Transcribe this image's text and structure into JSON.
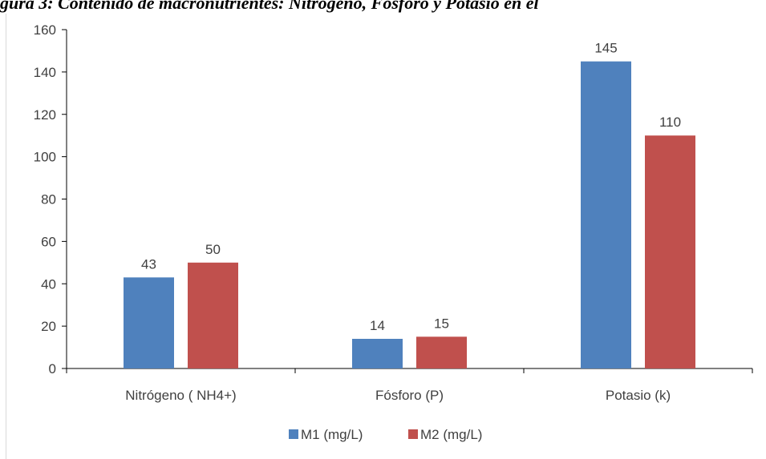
{
  "caption": "gura 3: Contenido de macronutrientes: Nitrógeno, Fósforo y Potasio en el",
  "chart_data": {
    "type": "bar",
    "categories": [
      "Nitrógeno ( NH4+)",
      "Fósforo (P)",
      "Potasio (k)"
    ],
    "series": [
      {
        "name": "M1 (mg/L)",
        "values": [
          43,
          14,
          145
        ],
        "color": "#4F81BD"
      },
      {
        "name": "M2 (mg/L)",
        "values": [
          50,
          15,
          110
        ],
        "color": "#C0504D"
      }
    ],
    "title": "",
    "xlabel": "",
    "ylabel": "",
    "ylim": [
      0,
      160
    ],
    "yticks": [
      0,
      20,
      40,
      60,
      80,
      100,
      120,
      140,
      160
    ],
    "grid": false,
    "legend": "bottom"
  }
}
